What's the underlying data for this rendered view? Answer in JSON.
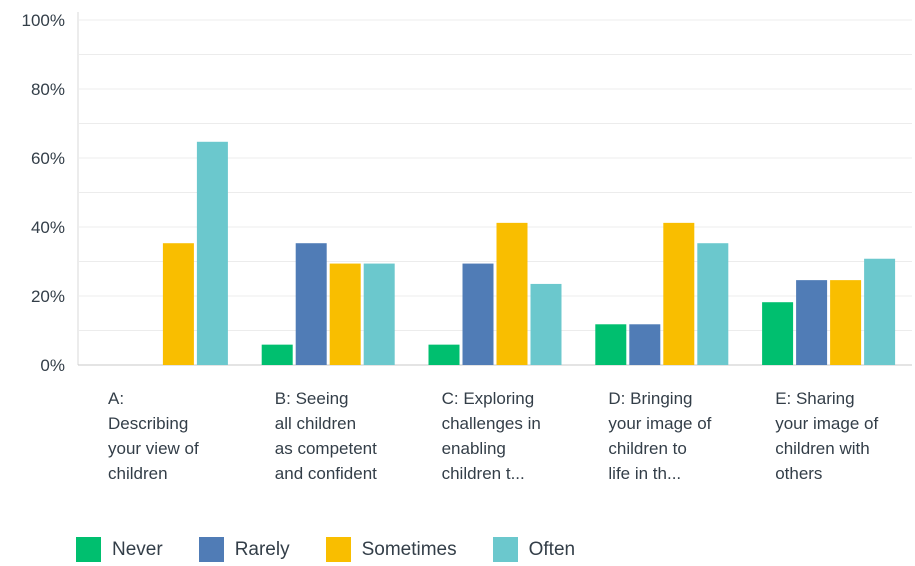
{
  "chart_data": {
    "type": "bar",
    "categories": [
      [
        "A:",
        "Describing",
        "your view of",
        "children"
      ],
      [
        "B: Seeing",
        "all children",
        "as competent",
        "and confident"
      ],
      [
        "C: Exploring",
        "challenges in",
        "enabling",
        "children t..."
      ],
      [
        "D: Bringing",
        "your image of",
        "children to",
        "life in th..."
      ],
      [
        "E: Sharing",
        "your image of",
        "children with",
        "others"
      ]
    ],
    "series": [
      {
        "name": "Never",
        "color": "#00bf6f",
        "values": [
          0,
          5.9,
          5.9,
          11.8,
          18.2
        ]
      },
      {
        "name": "Rarely",
        "color": "#507cb6",
        "values": [
          0,
          35.3,
          29.4,
          11.8,
          24.6
        ]
      },
      {
        "name": "Sometimes",
        "color": "#f9be00",
        "values": [
          35.3,
          29.4,
          41.2,
          41.2,
          24.6
        ]
      },
      {
        "name": "Often",
        "color": "#6bc8cd",
        "values": [
          64.7,
          29.4,
          23.5,
          35.3,
          30.8
        ]
      }
    ],
    "yticks": [
      "0%",
      "20%",
      "40%",
      "60%",
      "80%",
      "100%"
    ],
    "ylim": [
      0,
      100
    ],
    "grid": true,
    "legend_position": "bottom-left"
  }
}
